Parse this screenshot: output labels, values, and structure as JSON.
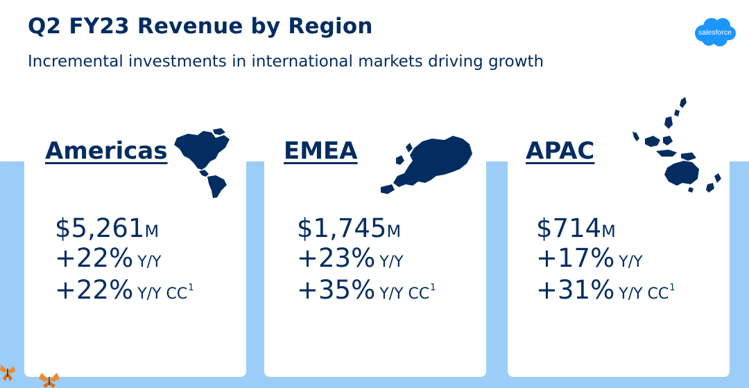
{
  "header": {
    "title": "Q2 FY23 Revenue by Region",
    "subtitle": "Incremental investments in international markets driving growth"
  },
  "logo": {
    "text": "salesforce",
    "color": "#1b96ff"
  },
  "colors": {
    "navy": "#032d60",
    "band": "#9bcdf8",
    "card": "#ffffff"
  },
  "regions": [
    {
      "name": "Americas",
      "map_icon": "americas-map-icon",
      "revenue_value": "$5,261",
      "revenue_unit": "M",
      "yy_value": "+22%",
      "yy_label": "Y/Y",
      "cc_value": "+22%",
      "cc_label": "Y/Y CC",
      "cc_footnote": "1"
    },
    {
      "name": "EMEA",
      "map_icon": "europe-map-icon",
      "revenue_value": "$1,745",
      "revenue_unit": "M",
      "yy_value": "+23%",
      "yy_label": "Y/Y",
      "cc_value": "+35%",
      "cc_label": "Y/Y CC",
      "cc_footnote": "1"
    },
    {
      "name": "APAC",
      "map_icon": "asia-pacific-map-icon",
      "revenue_value": "$714",
      "revenue_unit": "M",
      "yy_value": "+17%",
      "yy_label": "Y/Y",
      "cc_value": "+31%",
      "cc_label": "Y/Y CC",
      "cc_footnote": "1"
    }
  ],
  "decorations": [
    "butterfly-icon"
  ]
}
